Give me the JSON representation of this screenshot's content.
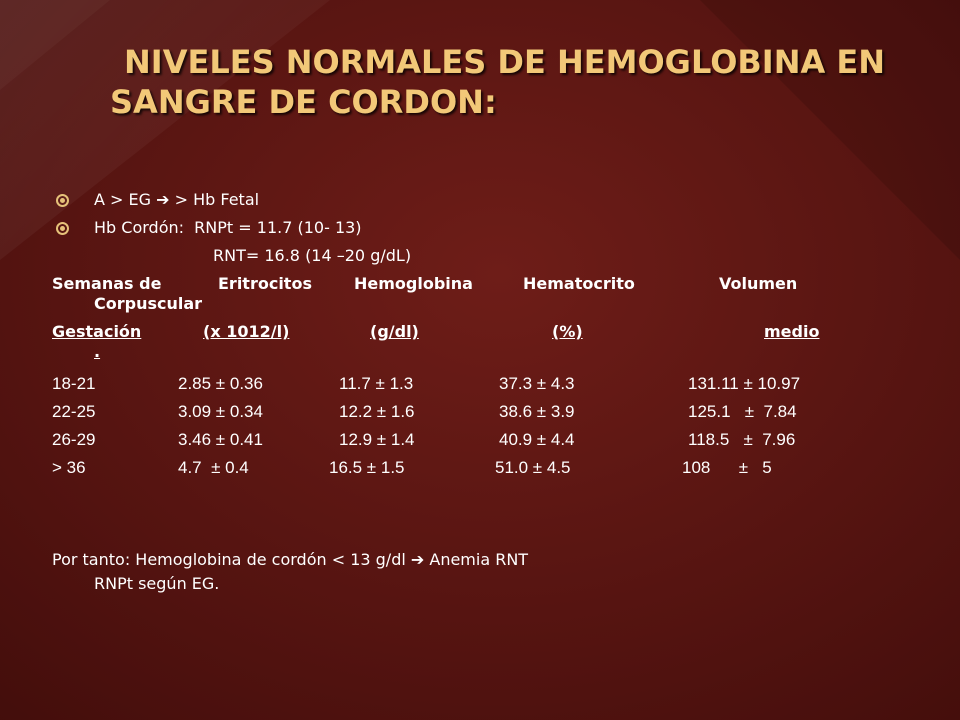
{
  "slide": {
    "title_line1": "NIVELES NORMALES DE HEMOGLOBINA EN",
    "title_line2": "SANGRE DE CORDON:",
    "bullets": [
      {
        "pre": "A > EG ",
        "arrow": "➔",
        "post": " > Hb Fetal"
      },
      {
        "pre": "Hb Cordón:  RNPt = 11.7 (10- 13)",
        "arrow": "",
        "post": ""
      }
    ],
    "rnt_line": "RNT= 16.8 (14 –20 g/dL)",
    "table": {
      "header1": [
        "Semanas de",
        "Eritrocitos",
        "Hemoglobina",
        "Hematocrito",
        "Volumen",
        "Corpuscular"
      ],
      "header2": [
        "Gestación",
        "(x 1012/l)",
        "(g/dl)",
        "(%)",
        "medio",
        "."
      ],
      "rows": [
        [
          "18-21",
          "2.85 ± 0.36",
          "11.7 ± 1.3",
          "37.3 ± 4.3",
          "131.11 ± 10.97"
        ],
        [
          "22-25",
          "3.09 ± 0.34",
          "12.2 ± 1.6",
          "38.6 ± 3.9",
          "125.1   ±  7.84"
        ],
        [
          "26-29",
          "3.46 ± 0.41",
          "12.9 ± 1.4",
          "40.9 ± 4.4",
          "118.5   ±  7.96"
        ],
        [
          "> 36",
          "4.7  ± 0.4",
          "16.5 ± 1.5",
          "51.0 ± 4.5",
          "108      ±   5"
        ]
      ]
    },
    "conclusion": {
      "line1_pre": "Por tanto: Hemoglobina de cordón  < 13 g/dl  ",
      "arrow": "➔",
      "line1_post": "  Anemia  RNT",
      "line2": "RNPt   según EG."
    },
    "colors": {
      "title": "#f2c878",
      "background": "#531310",
      "bullet": "#e6c27a"
    }
  }
}
